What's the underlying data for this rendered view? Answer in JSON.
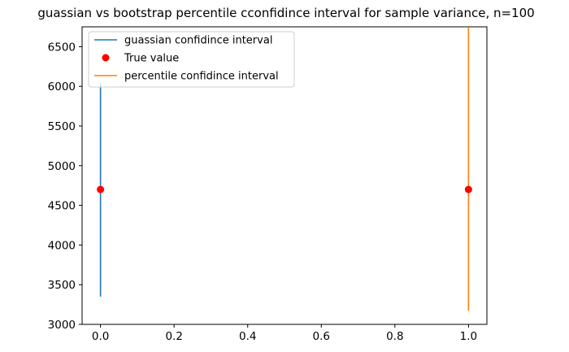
{
  "chart_data": {
    "type": "line",
    "title": "guassian vs bootstrap percentile cconfidince interval for sample variance, n=100",
    "xlabel": "",
    "ylabel": "",
    "xlim": [
      -0.05,
      1.05
    ],
    "ylim": [
      3000,
      6750
    ],
    "xticks": [
      0.0,
      0.2,
      0.4,
      0.6,
      0.8,
      1.0
    ],
    "xtick_labels": [
      "0.0",
      "0.2",
      "0.4",
      "0.6",
      "0.8",
      "1.0"
    ],
    "yticks": [
      3000,
      3500,
      4000,
      4500,
      5000,
      5500,
      6000,
      6500
    ],
    "ytick_labels": [
      "3000",
      "3500",
      "4000",
      "4500",
      "5000",
      "5500",
      "6000",
      "6500"
    ],
    "grid": false,
    "legend_position": "top-left",
    "series": [
      {
        "name": "guassian confidince interval",
        "kind": "line",
        "color": "#1f77b4",
        "x": [
          0,
          0
        ],
        "y": [
          3350,
          6040
        ]
      },
      {
        "name": "True value",
        "kind": "scatter",
        "color": "#ff0000",
        "x": [
          0,
          1
        ],
        "y": [
          4700,
          4700
        ]
      },
      {
        "name": "percentile confidince interval",
        "kind": "line",
        "color": "#ff7f0e",
        "x": [
          1,
          1
        ],
        "y": [
          3170,
          6740
        ]
      }
    ]
  }
}
